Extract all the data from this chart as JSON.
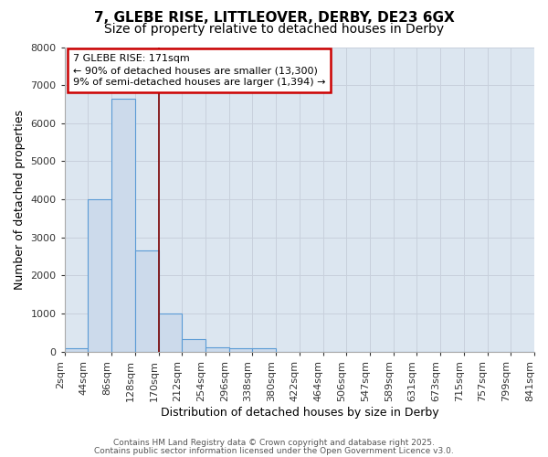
{
  "title_line1": "7, GLEBE RISE, LITTLEOVER, DERBY, DE23 6GX",
  "title_line2": "Size of property relative to detached houses in Derby",
  "xlabel": "Distribution of detached houses by size in Derby",
  "ylabel": "Number of detached properties",
  "bin_labels": [
    "2sqm",
    "44sqm",
    "86sqm",
    "128sqm",
    "170sqm",
    "212sqm",
    "254sqm",
    "296sqm",
    "338sqm",
    "380sqm",
    "422sqm",
    "464sqm",
    "506sqm",
    "547sqm",
    "589sqm",
    "631sqm",
    "673sqm",
    "715sqm",
    "757sqm",
    "799sqm",
    "841sqm"
  ],
  "bar_heights": [
    100,
    4000,
    6650,
    2650,
    1000,
    330,
    120,
    80,
    80,
    0,
    0,
    0,
    0,
    0,
    0,
    0,
    0,
    0,
    0,
    0
  ],
  "bar_color": "#ccdaeb",
  "bar_edge_color": "#5b9bd5",
  "vline_color": "#7b0000",
  "ylim": [
    0,
    8000
  ],
  "yticks": [
    0,
    1000,
    2000,
    3000,
    4000,
    5000,
    6000,
    7000,
    8000
  ],
  "grid_color": "#c8d0dc",
  "bg_color": "#dce6f0",
  "annotation_text_line1": "7 GLEBE RISE: 171sqm",
  "annotation_text_line2": "← 90% of detached houses are smaller (13,300)",
  "annotation_text_line3": "9% of semi-detached houses are larger (1,394) →",
  "annotation_box_color": "#cc0000",
  "footer_line1": "Contains HM Land Registry data © Crown copyright and database right 2025.",
  "footer_line2": "Contains public sector information licensed under the Open Government Licence v3.0.",
  "title_fontsize": 11,
  "subtitle_fontsize": 10,
  "tick_fontsize": 8,
  "ylabel_fontsize": 9,
  "xlabel_fontsize": 9,
  "annotation_fontsize": 8,
  "footer_fontsize": 6.5
}
